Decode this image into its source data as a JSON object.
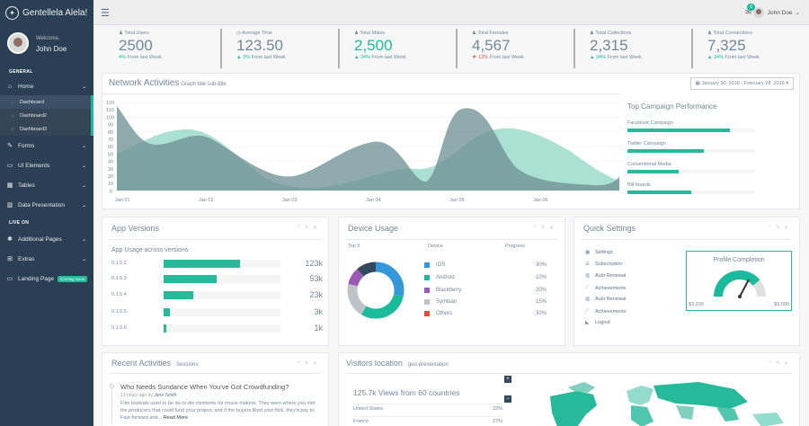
{
  "brand": {
    "name": "Gentellela Alela!"
  },
  "profile": {
    "welcome": "Welcome,",
    "name": "John Doe"
  },
  "nav": {
    "general_label": "GENERAL",
    "live_label": "LIVE ON",
    "home": "Home",
    "sub": [
      "Dashboard",
      "Dashboard2",
      "Dashboard3"
    ],
    "forms": "Forms",
    "ui": "UI Elements",
    "tables": "Tables",
    "data": "Data Presentation",
    "additional": "Additional Pages",
    "extras": "Extras",
    "landing": "Landing Page",
    "soon": "Coming Soon"
  },
  "topnav": {
    "mail_count": "6",
    "user": "John Doe"
  },
  "tiles": [
    {
      "label": "Total Users",
      "value": "2500",
      "change": "4%",
      "suffix": "From last Week"
    },
    {
      "label": "Average Time",
      "value": "123.50",
      "change": "3%",
      "suffix": "From last Week"
    },
    {
      "label": "Total Males",
      "value": "2,500",
      "change": "34%",
      "suffix": "From last Week"
    },
    {
      "label": "Total Females",
      "value": "4,567",
      "change": "12%",
      "suffix": "From last Week"
    },
    {
      "label": "Total Collections",
      "value": "2,315",
      "change": "34%",
      "suffix": "From last Week"
    },
    {
      "label": "Total Connections",
      "value": "7,325",
      "change": "34%",
      "suffix": "From last Week"
    }
  ],
  "network": {
    "title": "Network Activities",
    "subtitle": "Graph title sub-title",
    "date_range": "January 30, 2016 - February 28, 2016",
    "yticks": [
      "120",
      "110",
      "100",
      "90",
      "80",
      "70",
      "60",
      "50",
      "40",
      "30",
      "20",
      "10",
      "0"
    ],
    "xticks": [
      "Jan 01",
      "Jan 02",
      "Jan 03",
      "Jan 04",
      "Jan 05",
      "Jan 06"
    ]
  },
  "campaign": {
    "title": "Top Campaign Performance",
    "items": [
      {
        "label": "Facebook Campaign",
        "pct": 80
      },
      {
        "label": "Twitter Campaign",
        "pct": 60
      },
      {
        "label": "Conventional Media",
        "pct": 40
      },
      {
        "label": "Bill boards",
        "pct": 50
      }
    ]
  },
  "apps": {
    "title": "App Versions",
    "subtitle": "App Usage across versions",
    "rows": [
      {
        "version": "0.1.5.2",
        "value": "123k",
        "pct": 65
      },
      {
        "version": "0.1.5.3",
        "value": "53k",
        "pct": 45
      },
      {
        "version": "0.1.5.4",
        "value": "23k",
        "pct": 25
      },
      {
        "version": "0.1.5.5",
        "value": "3k",
        "pct": 5
      },
      {
        "version": "0.1.5.6",
        "value": "1k",
        "pct": 2
      }
    ]
  },
  "device": {
    "title": "Device Usage",
    "col_top": "Top 5",
    "col_device": "Device",
    "col_progress": "Progress",
    "items": [
      {
        "name": "IOS",
        "pct": "30%",
        "value": 30,
        "color": "#3498db"
      },
      {
        "name": "Android",
        "pct": "10%",
        "value": 10,
        "color": "#1abb9c"
      },
      {
        "name": "Blackberry",
        "pct": "20%",
        "value": 20,
        "color": "#9b59b6"
      },
      {
        "name": "Symbian",
        "pct": "15%",
        "value": 15,
        "color": "#bdc3c7"
      },
      {
        "name": "Others",
        "pct": "30%",
        "value": 30,
        "color": "#e74c3c"
      }
    ]
  },
  "quick": {
    "title": "Quick Settings",
    "items": [
      "Settings",
      "Subscription",
      "Auto Renewal",
      "Achievements",
      "Auto Renewal",
      "Achievements",
      "Logout"
    ],
    "profile_title": "Profile Completion",
    "min": "$3,200",
    "max": "$5,000",
    "completion": 0.7
  },
  "recent": {
    "title": "Recent Activities",
    "subtitle": "Sessions",
    "heading": "Who Needs Sundance When You've Got Crowdfunding?",
    "meta_ago": "13 hours ago",
    "meta_by": "by",
    "author": "Jane Smith",
    "body": "Film festivals used to be do-or-die moments for movie makers. They were where you met the producers that could fund your project, and if the buyers liked your flick, they'd pay to Fast-forward and...",
    "more": "Read More"
  },
  "visitors": {
    "title": "Visitors location",
    "subtitle": "geo-presentation",
    "headline": "125.7k Views from 60 countries",
    "rows": [
      {
        "country": "United States",
        "pct": "33%"
      },
      {
        "country": "France",
        "pct": "27%"
      }
    ]
  },
  "colors": {
    "accent": "#1abb9c",
    "sidebar": "#2a3f54"
  }
}
